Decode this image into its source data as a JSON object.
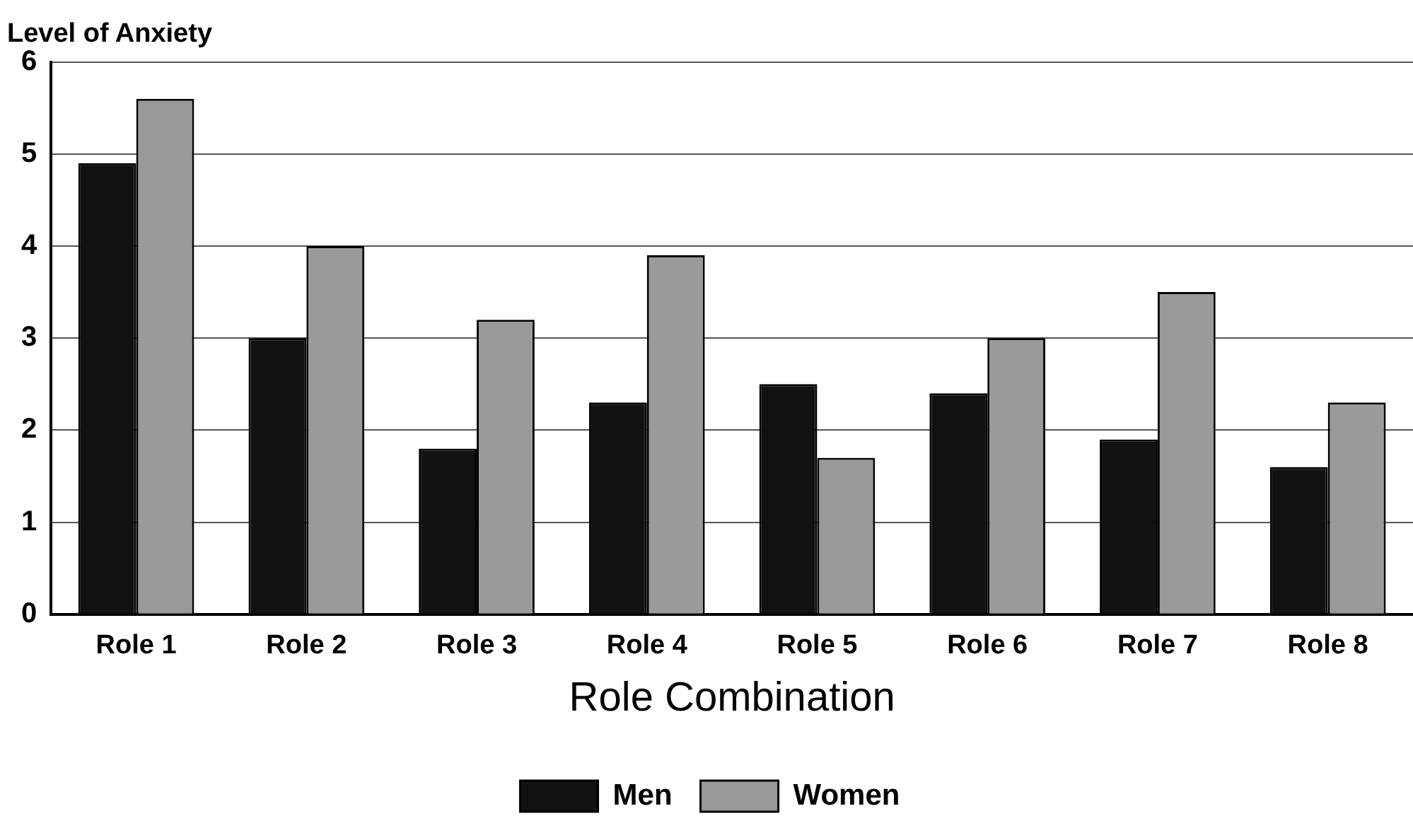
{
  "chart_data": {
    "type": "bar",
    "ylabel": "Level of Anxiety",
    "xlabel": "Role Combination",
    "categories": [
      "Role 1",
      "Role 2",
      "Role 3",
      "Role 4",
      "Role 5",
      "Role 6",
      "Role 7",
      "Role 8"
    ],
    "series": [
      {
        "name": "Men",
        "color": "#111111",
        "values": [
          4.9,
          3.0,
          1.8,
          2.3,
          2.5,
          2.4,
          1.9,
          1.6
        ]
      },
      {
        "name": "Women",
        "color": "#9a9a9a",
        "values": [
          5.6,
          4.0,
          3.2,
          3.9,
          1.7,
          3.0,
          3.5,
          2.3
        ]
      }
    ],
    "ylim": [
      0,
      6
    ],
    "yticks": [
      0,
      1,
      2,
      3,
      4,
      5,
      6
    ],
    "grid": "y",
    "legend": "bottom"
  }
}
